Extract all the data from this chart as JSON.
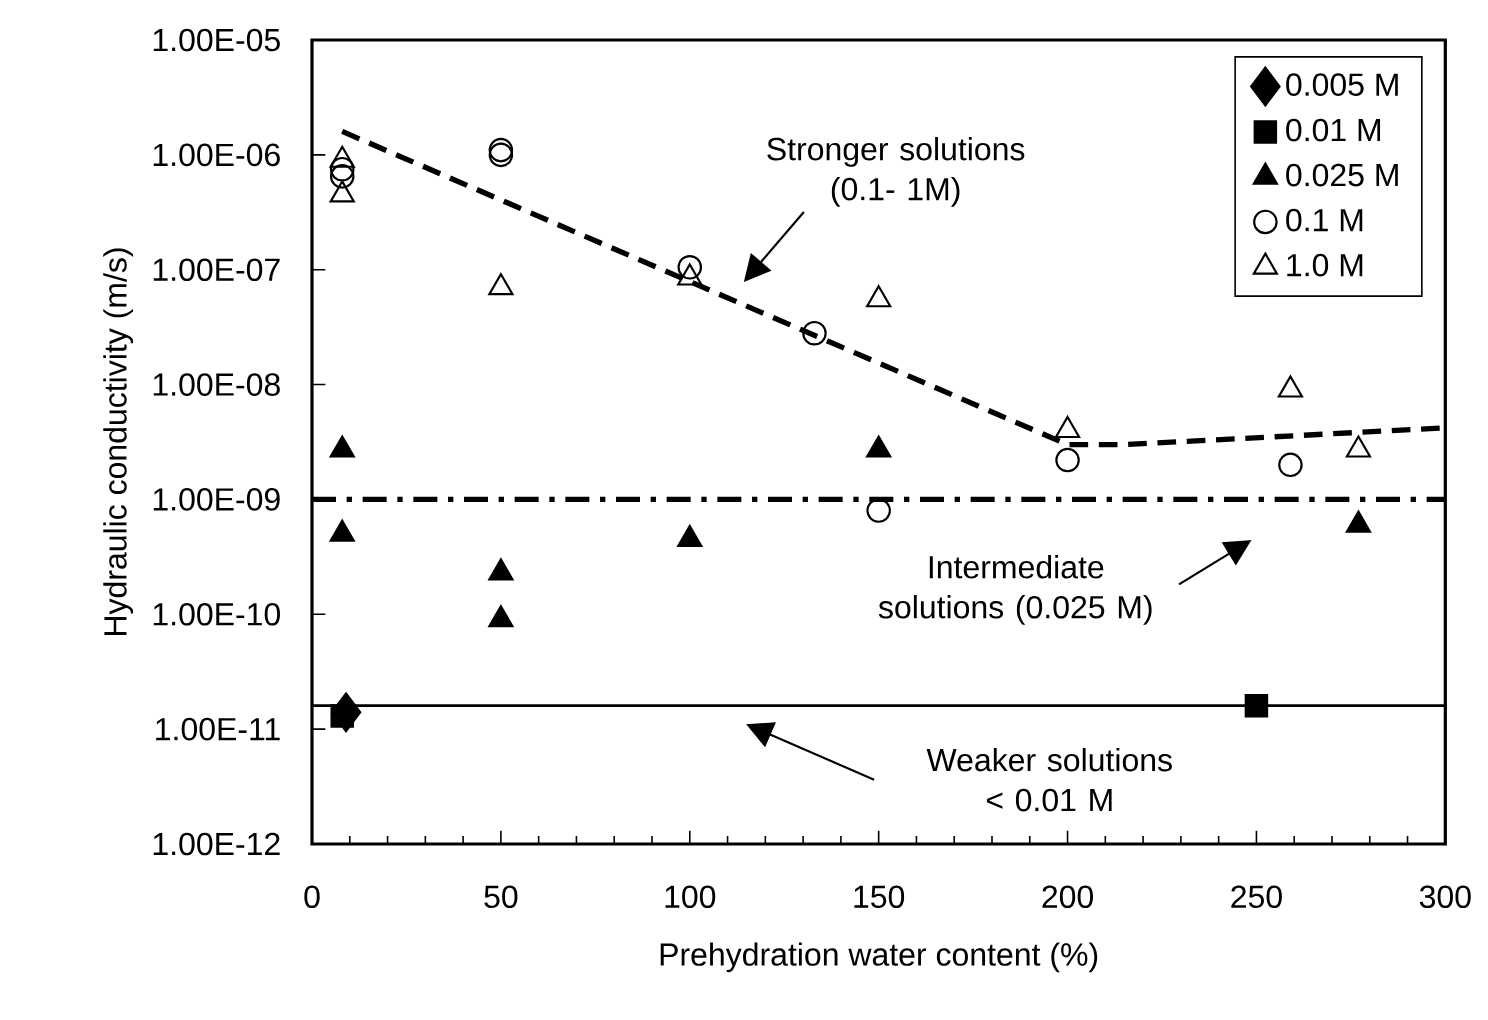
{
  "chart_data": {
    "type": "scatter",
    "xlabel": "Prehydration  water content (%)",
    "ylabel": "Hydraulic conductivity (m/s)",
    "xlim": [
      0,
      300
    ],
    "xticks": [
      0,
      50,
      100,
      150,
      200,
      250,
      300
    ],
    "ylim": [
      1e-12,
      1e-05
    ],
    "log": "y",
    "yticks": [
      {
        "value": 1e-12,
        "label": "1.00E-12"
      },
      {
        "value": 1e-11,
        "label": "1.00E-11"
      },
      {
        "value": 1e-10,
        "label": "1.00E-10"
      },
      {
        "value": 1e-09,
        "label": "1.00E-09"
      },
      {
        "value": 1e-08,
        "label": "1.00E-08"
      },
      {
        "value": 1e-07,
        "label": "1.00E-07"
      },
      {
        "value": 1e-06,
        "label": "1.00E-06"
      },
      {
        "value": 1e-05,
        "label": "1.00E-05"
      }
    ],
    "grid": false,
    "legend": "top right",
    "series": [
      {
        "name": "0.005 M",
        "color": "#000000",
        "marker": "diamond",
        "x": [
          9
        ],
        "values": [
          1.4e-11
        ]
      },
      {
        "name": "0.01 M",
        "color": "#000000",
        "marker": "square",
        "x": [
          8,
          250
        ],
        "values": [
          1.3e-11,
          1.6e-11
        ]
      },
      {
        "name": "0.025 M",
        "color": "#000000",
        "marker": "triangle",
        "x": [
          8,
          8,
          50,
          50,
          100,
          150,
          277
        ],
        "values": [
          2.7e-09,
          5e-10,
          2.3e-10,
          9e-11,
          4.5e-10,
          2.7e-09,
          6e-10
        ]
      },
      {
        "name": "0.1 M",
        "color": "#000000",
        "marker": "circle-open",
        "x": [
          8,
          8,
          50,
          50,
          100,
          133,
          150,
          200,
          259
        ],
        "values": [
          6.5e-07,
          7.5e-07,
          1.1e-06,
          1e-06,
          1.05e-07,
          2.8e-08,
          8e-10,
          2.2e-09,
          2e-09
        ]
      },
      {
        "name": "1.0 M",
        "color": "#000000",
        "marker": "triangle-open",
        "x": [
          8,
          8,
          50,
          100,
          150,
          200,
          259,
          277
        ],
        "values": [
          4.5e-07,
          9e-07,
          7e-08,
          8.5e-08,
          5.5e-08,
          4e-09,
          9e-09,
          2.7e-09
        ]
      },
      {
        "type": "line",
        "color": "#000000",
        "line_style": "dashed",
        "x": [
          8,
          200,
          215,
          300
        ],
        "values": [
          1.6e-06,
          3e-09,
          3e-09,
          4.2e-09
        ]
      }
    ],
    "ref_lines": [
      {
        "axis": "y",
        "value": 1e-09,
        "line_style": "dashdot",
        "color": "#000000"
      },
      {
        "axis": "y",
        "value": 1.6e-11,
        "line_style": "solid",
        "color": "#000000"
      }
    ],
    "annotations": [
      "Stronger solutions (0.1- 1M)",
      "Intermediate solutions (0.025 M)",
      "Weaker solutions < 0.01 M"
    ]
  }
}
